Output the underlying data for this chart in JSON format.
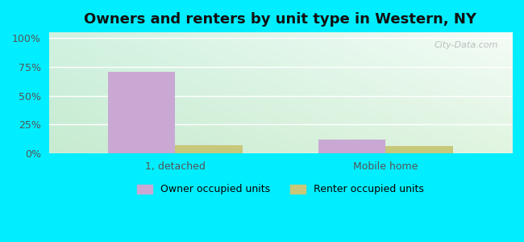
{
  "title": "Owners and renters by unit type in Western, NY",
  "categories": [
    "1, detached",
    "Mobile home"
  ],
  "owner_values": [
    70.5,
    12.0
  ],
  "renter_values": [
    7.0,
    6.5
  ],
  "owner_color": "#c9a8d4",
  "renter_color": "#c8c87a",
  "owner_label": "Owner occupied units",
  "renter_label": "Renter occupied units",
  "yticks": [
    0,
    25,
    50,
    75,
    100
  ],
  "ytick_labels": [
    "0%",
    "25%",
    "50%",
    "75%",
    "100%"
  ],
  "ylim": [
    0,
    105
  ],
  "background_color": "#00eeff",
  "bg_topleft": [
    0.82,
    0.95,
    0.88
  ],
  "bg_topright": [
    0.96,
    0.99,
    0.97
  ],
  "bg_bottomleft": [
    0.78,
    0.92,
    0.82
  ],
  "bg_bottomright": [
    0.88,
    0.96,
    0.88
  ],
  "watermark": "City-Data.com",
  "bar_width": 0.32,
  "title_fontsize": 13,
  "tick_fontsize": 9,
  "legend_fontsize": 9
}
